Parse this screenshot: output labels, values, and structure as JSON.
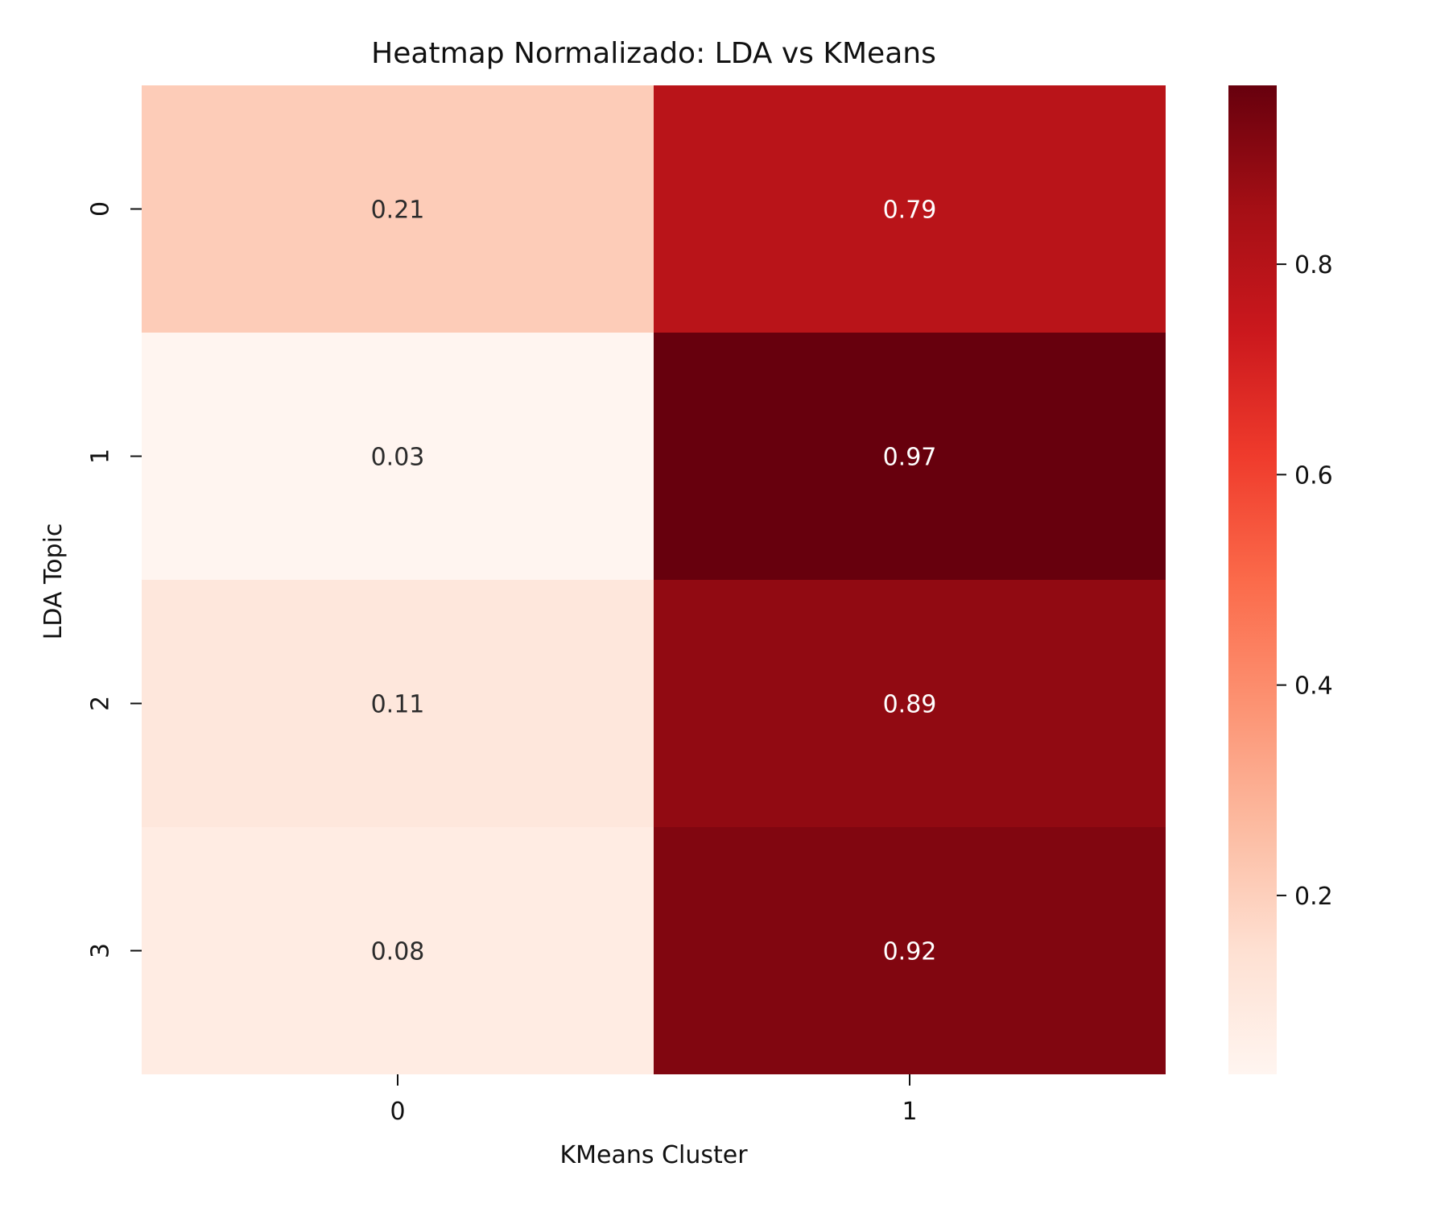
{
  "chart_data": {
    "type": "heatmap",
    "title": "Heatmap Normalizado: LDA vs KMeans",
    "xlabel": "KMeans Cluster",
    "ylabel": "LDA Topic",
    "x_categories": [
      "0",
      "1"
    ],
    "y_categories": [
      "0",
      "1",
      "2",
      "3"
    ],
    "values": [
      [
        0.21,
        0.79
      ],
      [
        0.03,
        0.97
      ],
      [
        0.11,
        0.89
      ],
      [
        0.08,
        0.92
      ]
    ],
    "value_labels": [
      [
        "0.21",
        "0.79"
      ],
      [
        "0.03",
        "0.97"
      ],
      [
        "0.11",
        "0.89"
      ],
      [
        "0.08",
        "0.92"
      ]
    ],
    "color_scale": {
      "name": "Reds",
      "min": 0.03,
      "max": 0.97,
      "ticks": [
        0.2,
        0.4,
        0.6,
        0.8
      ],
      "tick_labels": [
        "0.2",
        "0.4",
        "0.6",
        "0.8"
      ],
      "colors": {
        "low": "#fff5f0",
        "high": "#67000d"
      }
    },
    "legend_placement": "right",
    "grid": false
  }
}
